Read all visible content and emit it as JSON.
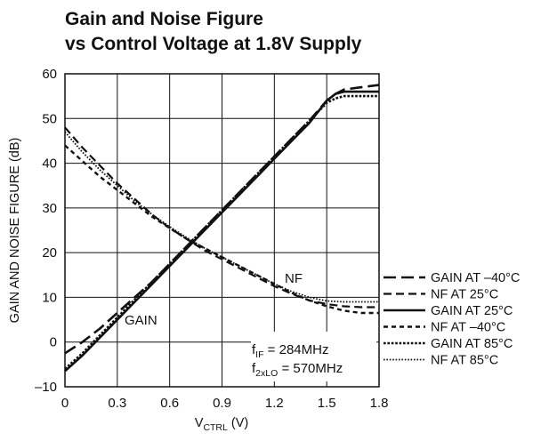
{
  "chart_data": {
    "type": "line",
    "title_line1": "Gain and Noise Figure",
    "title_line2": "vs Control Voltage at 1.8V Supply",
    "ylabel": "GAIN AND NOISE FIGURE (dB)",
    "xlabel_main": "V",
    "xlabel_sub": "CTRL",
    "xlabel_unit": " (V)",
    "xlim": [
      0,
      1.8
    ],
    "ylim": [
      -10,
      60
    ],
    "xticks": [
      0,
      0.3,
      0.6,
      0.9,
      1.2,
      1.5,
      1.8
    ],
    "xtick_labels": [
      "0",
      "0.3",
      "0.6",
      "0.9",
      "1.2",
      "1.5",
      "1.8"
    ],
    "yticks": [
      -10,
      0,
      10,
      20,
      30,
      40,
      50,
      60
    ],
    "ytick_labels": [
      "–10",
      "0",
      "10",
      "20",
      "30",
      "40",
      "50",
      "60"
    ],
    "grid": true,
    "legend_position": "right",
    "annotations": {
      "nf": "NF",
      "gain": "GAIN",
      "fif_main": "f",
      "fif_sub": "IF",
      "fif_value": " = 284MHz",
      "flo_main": "f",
      "flo_sub": "2xLO",
      "flo_value": " = 570MHz"
    },
    "series": [
      {
        "name": "GAIN AT –40°C",
        "dash": "long",
        "width": 2.6,
        "x": [
          0,
          0.1,
          0.2,
          0.3,
          0.4,
          0.5,
          0.6,
          0.7,
          0.8,
          0.9,
          1.0,
          1.1,
          1.2,
          1.3,
          1.4,
          1.5,
          1.55,
          1.6,
          1.7,
          1.8
        ],
        "y": [
          -2.5,
          0,
          3,
          6.5,
          10,
          13.5,
          17.5,
          21.5,
          25.5,
          29.5,
          33.5,
          37.5,
          41.5,
          45.5,
          49.5,
          54,
          55.5,
          56.5,
          57,
          57.5
        ]
      },
      {
        "name": "NF AT 25°C",
        "dash": "medium",
        "width": 2.2,
        "x": [
          0,
          0.1,
          0.2,
          0.3,
          0.4,
          0.5,
          0.6,
          0.7,
          0.8,
          0.9,
          1.0,
          1.1,
          1.2,
          1.3,
          1.4,
          1.5,
          1.6,
          1.7,
          1.8
        ],
        "y": [
          48,
          43.5,
          39.5,
          35.5,
          32,
          28.5,
          25.5,
          23,
          20.5,
          18.5,
          16.5,
          14.5,
          12.5,
          10.8,
          9.3,
          8.5,
          8,
          7.8,
          7.8
        ]
      },
      {
        "name": "GAIN AT 25°C",
        "dash": "solid",
        "width": 2.6,
        "x": [
          0,
          0.1,
          0.2,
          0.3,
          0.4,
          0.5,
          0.6,
          0.7,
          0.8,
          0.9,
          1.0,
          1.1,
          1.2,
          1.3,
          1.4,
          1.5,
          1.55,
          1.6,
          1.7,
          1.8
        ],
        "y": [
          -6.5,
          -3,
          1,
          5,
          9,
          13,
          17,
          21,
          25,
          29,
          33,
          37,
          41,
          45,
          49,
          54,
          55.5,
          56,
          56,
          56
        ]
      },
      {
        "name": "NF AT –40°C",
        "dash": "short",
        "width": 2.4,
        "x": [
          0,
          0.1,
          0.2,
          0.3,
          0.4,
          0.5,
          0.6,
          0.7,
          0.8,
          0.9,
          1.0,
          1.1,
          1.2,
          1.3,
          1.4,
          1.5,
          1.6,
          1.7,
          1.8
        ],
        "y": [
          44,
          40.5,
          37,
          34,
          31,
          28,
          25.5,
          23,
          21,
          19,
          17,
          15,
          13,
          11,
          9.3,
          8,
          7,
          6.5,
          6.5
        ]
      },
      {
        "name": "GAIN AT 85°C",
        "dash": "dotted",
        "width": 2.6,
        "x": [
          0,
          0.1,
          0.2,
          0.3,
          0.4,
          0.5,
          0.6,
          0.7,
          0.8,
          0.9,
          1.0,
          1.1,
          1.2,
          1.3,
          1.4,
          1.5,
          1.55,
          1.6,
          1.7,
          1.8
        ],
        "y": [
          -6,
          -2.5,
          1.5,
          5.5,
          9.5,
          13.5,
          17.5,
          21.5,
          25.5,
          29.5,
          33.5,
          37.5,
          41.5,
          45.5,
          49.5,
          53.5,
          54.5,
          55,
          55,
          55
        ]
      },
      {
        "name": "NF AT 85°C",
        "dash": "dotted-fine",
        "width": 1.8,
        "x": [
          0,
          0.1,
          0.2,
          0.3,
          0.4,
          0.5,
          0.6,
          0.7,
          0.8,
          0.9,
          1.0,
          1.1,
          1.2,
          1.3,
          1.4,
          1.5,
          1.6,
          1.7,
          1.8
        ],
        "y": [
          47,
          42.5,
          38.5,
          35,
          31.5,
          28.5,
          25.8,
          23.3,
          21,
          19,
          17,
          15,
          13,
          11.3,
          10,
          9.2,
          9,
          9,
          9
        ]
      }
    ]
  }
}
